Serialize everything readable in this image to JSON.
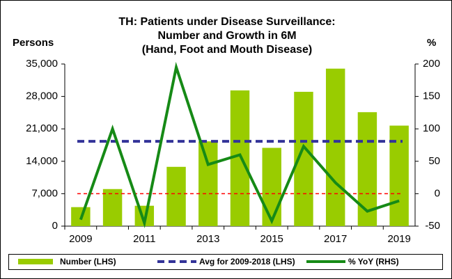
{
  "chart_data": {
    "type": "bar-line",
    "title": [
      "TH: Patients under Disease Surveillance:",
      "Number and Growth in 6M",
      "(Hand, Foot and Mouth Disease)"
    ],
    "y_label": "Persons",
    "y2_label": "%",
    "categories": [
      "2009",
      null,
      "2011",
      null,
      "2013",
      null,
      "2015",
      null,
      "2017",
      null,
      "2019"
    ],
    "series": [
      {
        "name": "Number (LHS)",
        "type": "bar",
        "color": "#99cc00",
        "axis": "y",
        "values": [
          4100,
          8000,
          4400,
          12800,
          18300,
          29300,
          16900,
          29000,
          34000,
          24600,
          21700
        ]
      },
      {
        "name": "Avg for 2009-2018 (LHS)",
        "type": "hline",
        "color": "#333399",
        "axis": "y",
        "value": 18300
      },
      {
        "name": "% YoY (RHS)",
        "type": "line",
        "color": "#168a16",
        "axis": "y2",
        "values": [
          -40,
          100,
          -45,
          195,
          45,
          60,
          -42,
          73,
          17,
          -27,
          -11
        ]
      }
    ],
    "reference_line": {
      "axis": "y2",
      "value": 0,
      "color": "#ff0000"
    },
    "ylim": [
      0,
      35000
    ],
    "yticks": [
      {
        "value": 0,
        "label": "0"
      },
      {
        "value": 7000,
        "label": "7,000"
      },
      {
        "value": 14000,
        "label": "14,000"
      },
      {
        "value": 21000,
        "label": "21,000"
      },
      {
        "value": 28000,
        "label": "28,000"
      },
      {
        "value": 35000,
        "label": "35,000"
      }
    ],
    "y2lim": [
      -50,
      200
    ],
    "y2ticks": [
      -50,
      0,
      50,
      100,
      150,
      200
    ]
  }
}
